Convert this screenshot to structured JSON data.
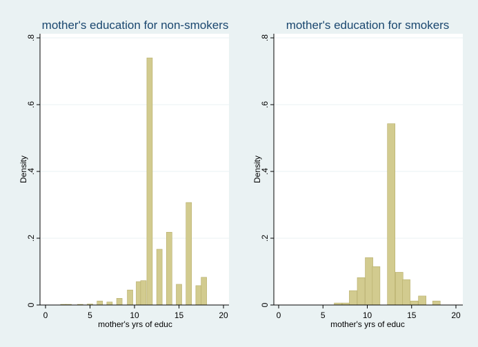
{
  "chart_data": [
    {
      "type": "bar",
      "title": "mother's education for non-smokers",
      "xlabel": "mother's yrs of educ",
      "ylabel": "Density",
      "xlim": [
        0,
        20
      ],
      "ylim": [
        0,
        0.8
      ],
      "xticks": [
        0,
        5,
        10,
        15,
        20
      ],
      "xtick_labels": [
        "0",
        "5",
        "10",
        "15",
        "20"
      ],
      "yticks": [
        0,
        0.2,
        0.4,
        0.6,
        0.8
      ],
      "ytick_labels": [
        "0",
        ".2",
        ".4",
        ".6",
        ".8"
      ],
      "grid": true,
      "bin_width": 0.62,
      "bars": [
        {
          "x": 2.0,
          "value": 0.002
        },
        {
          "x": 2.6,
          "value": 0.002
        },
        {
          "x": 3.9,
          "value": 0.002
        },
        {
          "x": 5.0,
          "value": 0.003
        },
        {
          "x": 6.1,
          "value": 0.012
        },
        {
          "x": 7.2,
          "value": 0.009
        },
        {
          "x": 8.3,
          "value": 0.02
        },
        {
          "x": 9.5,
          "value": 0.045
        },
        {
          "x": 10.5,
          "value": 0.07
        },
        {
          "x": 11.0,
          "value": 0.073
        },
        {
          "x": 11.7,
          "value": 0.74
        },
        {
          "x": 12.8,
          "value": 0.167
        },
        {
          "x": 13.9,
          "value": 0.218
        },
        {
          "x": 15.0,
          "value": 0.062
        },
        {
          "x": 16.1,
          "value": 0.307
        },
        {
          "x": 17.2,
          "value": 0.058
        },
        {
          "x": 17.8,
          "value": 0.083
        }
      ]
    },
    {
      "type": "bar",
      "title": "mother's education for smokers",
      "xlabel": "mother's yrs of educ",
      "ylabel": "Density",
      "xlim": [
        0,
        20
      ],
      "ylim": [
        0,
        0.8
      ],
      "xticks": [
        0,
        5,
        10,
        15,
        20
      ],
      "xtick_labels": [
        "0",
        "5",
        "10",
        "15",
        "20"
      ],
      "yticks": [
        0,
        0.2,
        0.4,
        0.6,
        0.8
      ],
      "ytick_labels": [
        "0",
        ".2",
        ".4",
        ".6",
        ".8"
      ],
      "grid": true,
      "bin_width": 0.86,
      "bars": [
        {
          "x": 6.7,
          "value": 0.006
        },
        {
          "x": 7.6,
          "value": 0.006
        },
        {
          "x": 8.4,
          "value": 0.043
        },
        {
          "x": 9.3,
          "value": 0.082
        },
        {
          "x": 10.2,
          "value": 0.142
        },
        {
          "x": 11.0,
          "value": 0.115
        },
        {
          "x": 11.9,
          "value": 0.0
        },
        {
          "x": 12.7,
          "value": 0.543
        },
        {
          "x": 13.6,
          "value": 0.098
        },
        {
          "x": 14.4,
          "value": 0.076
        },
        {
          "x": 15.3,
          "value": 0.012
        },
        {
          "x": 16.2,
          "value": 0.027
        },
        {
          "x": 17.8,
          "value": 0.012
        }
      ]
    }
  ],
  "colors": {
    "background": "#eaf2f3",
    "plot_area": "#ffffff",
    "bar_fill": "#d2cb8f",
    "bar_stroke": "#b5ac68",
    "title": "#1a476f",
    "grid": "#eaf2f3"
  }
}
